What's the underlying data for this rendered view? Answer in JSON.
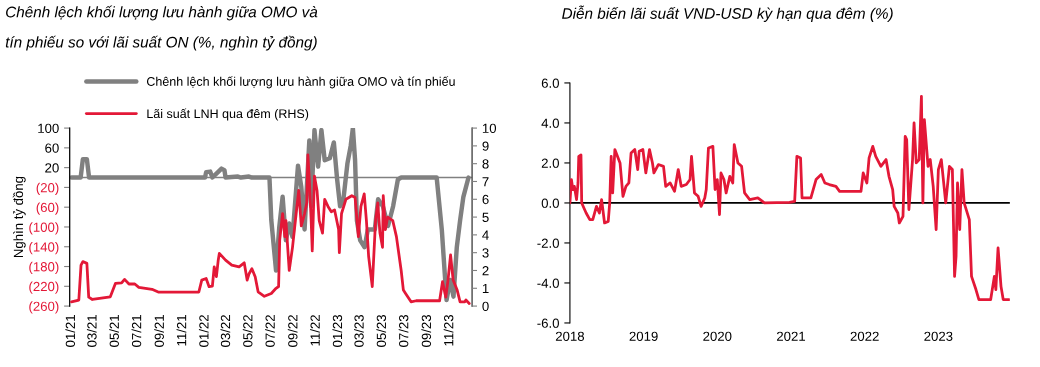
{
  "chart_data": [
    {
      "type": "line",
      "title": "Chênh lệch khối lượng lưu hành giữa OMO và\ntín phiếu so với lãi suất ON (%, nghìn tỷ đồng)",
      "ylabel": "Nghìn tỷ đồng",
      "xlim": [
        "2020-12-27",
        "2024-01-01"
      ],
      "xticks": [
        {
          "value": "2021-01-01",
          "label": "01/21"
        },
        {
          "value": "2021-03-01",
          "label": "03/21"
        },
        {
          "value": "2021-05-01",
          "label": "05/21"
        },
        {
          "value": "2021-07-01",
          "label": "07/21"
        },
        {
          "value": "2021-09-01",
          "label": "09/21"
        },
        {
          "value": "2021-11-01",
          "label": "11/21"
        },
        {
          "value": "2022-01-01",
          "label": "01/22"
        },
        {
          "value": "2022-03-01",
          "label": "03/22"
        },
        {
          "value": "2022-05-01",
          "label": "05/22"
        },
        {
          "value": "2022-07-01",
          "label": "07/22"
        },
        {
          "value": "2022-09-01",
          "label": "09/22"
        },
        {
          "value": "2022-11-01",
          "label": "11/22"
        },
        {
          "value": "2023-01-01",
          "label": "01/23"
        },
        {
          "value": "2023-03-01",
          "label": "03/23"
        },
        {
          "value": "2023-05-01",
          "label": "05/23"
        },
        {
          "value": "2023-07-01",
          "label": "07/23"
        },
        {
          "value": "2023-09-01",
          "label": "09/23"
        },
        {
          "value": "2023-11-01",
          "label": "11/23"
        }
      ],
      "ylim": [
        -260,
        100
      ],
      "yticks": [
        100,
        60,
        20,
        {
          "value": -20,
          "label": "(20)"
        },
        {
          "value": -60,
          "label": "(60)"
        },
        {
          "value": -100,
          "label": "(100)"
        },
        {
          "value": -140,
          "label": "(140)"
        },
        {
          "value": -180,
          "label": "(180)"
        },
        {
          "value": -220,
          "label": "(220)"
        },
        {
          "value": -260,
          "label": "(260)"
        }
      ],
      "y2lim": [
        0,
        10
      ],
      "y2ticks": [
        0,
        1,
        2,
        3,
        4,
        5,
        6,
        7,
        8,
        9,
        10
      ],
      "ref_lines": [
        {
          "axis": "y",
          "value": 0,
          "color": "#808080"
        }
      ],
      "legend": "top",
      "grid": false,
      "series": [
        {
          "name": "Chênh lệch khối lượng lưu hành giữa OMO và tín phiếu",
          "color": "#808080",
          "x": [
            "2021-01-01",
            "2021-01-26",
            "2021-02-01",
            "2021-02-12",
            "2021-02-18",
            "2022-01-01",
            "2022-01-04",
            "2022-01-15",
            "2022-01-21",
            "2022-02-01",
            "2022-02-15",
            "2022-02-23",
            "2022-02-26",
            "2022-04-01",
            "2022-04-09",
            "2022-05-01",
            "2022-05-09",
            "2022-06-26",
            "2022-07-01",
            "2022-07-14",
            "2022-07-23",
            "2022-08-01",
            "2022-08-10",
            "2022-08-19",
            "2022-08-28",
            "2022-09-12",
            "2022-09-21",
            "2022-09-30",
            "2022-10-13",
            "2022-10-18",
            "2022-10-27",
            "2022-11-06",
            "2022-11-15",
            "2022-11-24",
            "2022-12-08",
            "2022-12-19",
            "2022-12-28",
            "2023-01-05",
            "2023-01-14",
            "2023-01-25",
            "2023-02-03",
            "2023-02-09",
            "2023-02-15",
            "2023-02-20",
            "2023-03-01",
            "2023-03-13",
            "2023-03-22",
            "2023-04-10",
            "2023-04-19",
            "2023-05-02",
            "2023-05-16",
            "2023-05-30",
            "2023-06-12",
            "2023-06-21",
            "2023-09-26",
            "2023-10-10",
            "2023-10-23",
            "2023-11-02",
            "2023-11-11",
            "2023-11-20",
            "2023-11-29",
            "2023-12-08",
            "2023-12-22"
          ],
          "values": [
            0,
            0,
            37,
            37,
            0,
            0,
            11,
            12,
            0,
            8,
            18,
            15,
            0,
            2,
            0,
            2,
            0,
            0,
            -86,
            -188,
            -99,
            -39,
            -127,
            -93,
            -120,
            24,
            -19,
            -105,
            75,
            -58,
            96,
            22,
            96,
            35,
            39,
            71,
            -4,
            -58,
            -45,
            28,
            64,
            100,
            35,
            -87,
            -127,
            -141,
            -105,
            -105,
            -44,
            -58,
            -98,
            -58,
            -4,
            0,
            0,
            -105,
            -248,
            -207,
            -241,
            -141,
            -87,
            -39,
            0
          ]
        },
        {
          "name": "Lãi suất LNH qua đêm (RHS)",
          "color": "#e31837",
          "axis": "y2",
          "x": [
            "2021-01-01",
            "2021-01-21",
            "2021-01-27",
            "2021-02-01",
            "2021-02-12",
            "2021-02-17",
            "2021-02-27",
            "2021-04-17",
            "2021-05-01",
            "2021-05-18",
            "2021-05-26",
            "2021-06-07",
            "2021-06-23",
            "2021-07-04",
            "2021-08-09",
            "2021-08-26",
            "2021-10-04",
            "2021-12-15",
            "2021-12-23",
            "2022-01-04",
            "2022-01-12",
            "2022-01-21",
            "2022-01-26",
            "2022-02-01",
            "2022-02-06",
            "2022-02-09",
            "2022-02-26",
            "2022-03-15",
            "2022-04-04",
            "2022-04-18",
            "2022-04-26",
            "2022-05-01",
            "2022-05-09",
            "2022-05-18",
            "2022-05-26",
            "2022-06-12",
            "2022-07-01",
            "2022-07-14",
            "2022-07-21",
            "2022-07-24",
            "2022-08-01",
            "2022-08-07",
            "2022-08-10",
            "2022-08-19",
            "2022-08-28",
            "2022-09-07",
            "2022-09-14",
            "2022-09-21",
            "2022-09-30",
            "2022-10-06",
            "2022-10-09",
            "2022-10-13",
            "2022-10-18",
            "2022-10-21",
            "2022-10-27",
            "2022-11-03",
            "2022-11-09",
            "2022-11-18",
            "2022-11-24",
            "2022-12-03",
            "2022-12-12",
            "2022-12-21",
            "2023-01-01",
            "2023-01-03",
            "2023-01-09",
            "2023-01-21",
            "2023-02-06",
            "2023-02-15",
            "2023-02-24",
            "2023-03-03",
            "2023-03-12",
            "2023-03-18",
            "2023-03-24",
            "2023-04-03",
            "2023-04-12",
            "2023-04-18",
            "2023-04-24",
            "2023-05-01",
            "2023-05-03",
            "2023-05-09",
            "2023-05-15",
            "2023-05-29",
            "2023-06-08",
            "2023-06-21",
            "2023-06-27",
            "2023-07-03",
            "2023-07-18",
            "2023-08-01",
            "2023-10-04",
            "2023-10-12",
            "2023-10-21",
            "2023-10-27",
            "2023-11-03",
            "2023-11-10",
            "2023-11-21",
            "2023-11-29",
            "2023-12-12",
            "2023-12-15",
            "2023-12-24"
          ],
          "values": [
            0.24,
            0.34,
            2.3,
            2.5,
            2.4,
            0.5,
            0.37,
            0.52,
            1.27,
            1.3,
            1.5,
            1.24,
            1.24,
            1.05,
            0.94,
            0.79,
            0.79,
            0.79,
            1.46,
            1.55,
            1.09,
            1.12,
            2.2,
            1.65,
            2.58,
            2.96,
            2.58,
            2.3,
            2.2,
            2.43,
            1.46,
            1.8,
            2.1,
            1.65,
            0.8,
            0.55,
            0.71,
            1.0,
            1.1,
            3.7,
            5.2,
            3.9,
            4.8,
            2.0,
            3.3,
            5.2,
            6.5,
            4.5,
            5.2,
            5.8,
            8.5,
            7.1,
            4.8,
            3.1,
            7.3,
            6.5,
            4.8,
            4.1,
            6.0,
            5.6,
            5.3,
            5.4,
            4.3,
            3.0,
            5.2,
            6.0,
            6.2,
            6.1,
            3.9,
            5.6,
            6.3,
            4.8,
            2.8,
            1.1,
            4.8,
            5.8,
            4.1,
            3.3,
            6.2,
            4.3,
            5.0,
            4.8,
            3.9,
            2.0,
            0.9,
            0.71,
            0.24,
            0.3,
            0.3,
            1.37,
            0.5,
            1.46,
            2.87,
            1.46,
            0.9,
            0.24,
            0.24,
            0.34,
            0.15
          ]
        }
      ]
    },
    {
      "type": "line",
      "title": "Diễn biến lãi suất VND-USD kỳ hạn qua đêm (%)",
      "xlim": [
        2018.0,
        2023.97
      ],
      "xticks": [
        2018,
        2019,
        2020,
        2021,
        2022,
        2023
      ],
      "ylim": [
        -6,
        6
      ],
      "yticks": [
        {
          "value": -6,
          "label": "-6.0"
        },
        {
          "value": -4,
          "label": "-4.0"
        },
        {
          "value": -2,
          "label": "-2.0"
        },
        {
          "value": 0,
          "label": "0.0"
        },
        {
          "value": 2,
          "label": "2.0"
        },
        {
          "value": 4,
          "label": "4.0"
        },
        {
          "value": 6,
          "label": "6.0"
        }
      ],
      "ref_lines": [
        {
          "axis": "y",
          "value": 0,
          "color": "#000000"
        }
      ],
      "grid": false,
      "series": [
        {
          "color": "#e31837",
          "x": [
            2018.0,
            2018.02,
            2018.04,
            2018.06,
            2018.09,
            2018.11,
            2018.12,
            2018.15,
            2018.16,
            2018.22,
            2018.27,
            2018.31,
            2018.36,
            2018.4,
            2018.43,
            2018.47,
            2018.52,
            2018.54,
            2018.56,
            2018.58,
            2018.61,
            2018.68,
            2018.72,
            2018.76,
            2018.8,
            2018.83,
            2018.88,
            2018.92,
            2018.94,
            2018.99,
            2019.03,
            2019.08,
            2019.12,
            2019.14,
            2019.2,
            2019.27,
            2019.3,
            2019.36,
            2019.42,
            2019.47,
            2019.51,
            2019.58,
            2019.63,
            2019.65,
            2019.69,
            2019.74,
            2019.78,
            2019.83,
            2019.85,
            2019.88,
            2019.94,
            2019.97,
            2020.0,
            2020.03,
            2020.05,
            2020.09,
            2020.12,
            2020.17,
            2020.21,
            2020.23,
            2020.28,
            2020.33,
            2020.37,
            2020.44,
            2020.55,
            2020.64,
            2020.98,
            2021.05,
            2021.08,
            2021.13,
            2021.15,
            2021.27,
            2021.34,
            2021.41,
            2021.46,
            2021.52,
            2021.61,
            2021.66,
            2021.95,
            2021.98,
            2022.03,
            2022.06,
            2022.11,
            2022.15,
            2022.22,
            2022.29,
            2022.33,
            2022.38,
            2022.4,
            2022.45,
            2022.47,
            2022.52,
            2022.55,
            2022.57,
            2022.6,
            2022.65,
            2022.67,
            2022.7,
            2022.74,
            2022.77,
            2022.79,
            2022.81,
            2022.86,
            2022.89,
            2022.93,
            2022.97,
            2023.0,
            2023.04,
            2023.1,
            2023.15,
            2023.19,
            2023.22,
            2023.24,
            2023.26,
            2023.29,
            2023.32,
            2023.35,
            2023.42,
            2023.45,
            2023.51,
            2023.55,
            2023.71,
            2023.76,
            2023.78,
            2023.81,
            2023.85,
            2023.88,
            2023.96
          ],
          "values": [
            0,
            1.17,
            0.67,
            0.83,
            0.17,
            1.0,
            2.33,
            2.4,
            0.0,
            -0.5,
            -0.83,
            -0.83,
            -0.17,
            -0.5,
            0.17,
            -1.0,
            -0.92,
            0,
            2.33,
            0.5,
            2.67,
            2.0,
            0.33,
            0.83,
            1.0,
            2.5,
            2.67,
            1.67,
            2.58,
            2.67,
            1.5,
            2.67,
            2.0,
            1.5,
            1.92,
            1.83,
            0.83,
            1.0,
            0.58,
            1.67,
            0.83,
            0.92,
            1.17,
            2.33,
            0.5,
            0.33,
            -0.17,
            0.25,
            0.67,
            2.75,
            2.83,
            0.67,
            1.17,
            -0.58,
            1.5,
            1.17,
            0.5,
            1.33,
            1.0,
            2.92,
            2.0,
            1.83,
            0.5,
            0.17,
            0.25,
            0.0,
            0.03,
            0.08,
            2.33,
            2.25,
            0.25,
            0.25,
            1.17,
            1.42,
            1.0,
            0.92,
            0.83,
            0.58,
            0.58,
            1.5,
            1.0,
            2.25,
            2.83,
            2.33,
            1.83,
            2.17,
            1.33,
            0.67,
            -0.17,
            -0.5,
            -1.0,
            -0.67,
            3.33,
            3.17,
            -0.33,
            2.17,
            4.0,
            2.0,
            2.17,
            5.33,
            0.0,
            4.17,
            1.83,
            2.17,
            0.83,
            -1.33,
            1.67,
            2.17,
            0.0,
            1.83,
            1.67,
            -3.67,
            -2.67,
            1.0,
            -1.33,
            1.67,
            0.0,
            -0.83,
            -3.67,
            -4.33,
            -4.83,
            -4.83,
            -3.67,
            -4.33,
            -2.25,
            -4.17,
            -4.83,
            -4.83
          ]
        }
      ]
    }
  ]
}
